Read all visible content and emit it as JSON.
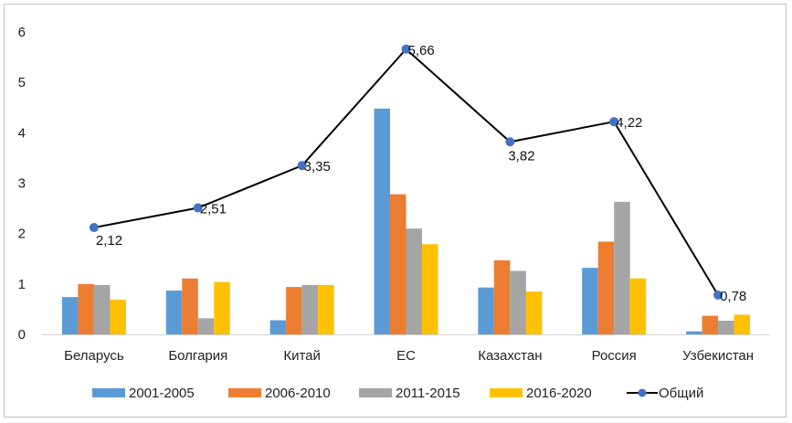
{
  "chart_data": {
    "type": "bar",
    "categories": [
      "Беларусь",
      "Болгария",
      "Китай",
      "ЕС",
      "Казахстан",
      "Россия",
      "Узбекистан"
    ],
    "series": [
      {
        "name": "2001-2005",
        "type": "bar",
        "color": "#5B9BD5",
        "values": [
          0.74,
          0.87,
          0.28,
          4.48,
          0.93,
          1.32,
          0.06
        ]
      },
      {
        "name": "2006-2010",
        "type": "bar",
        "color": "#ED7D31",
        "values": [
          1.0,
          1.11,
          0.94,
          2.78,
          1.47,
          1.84,
          0.37
        ]
      },
      {
        "name": "2011-2015",
        "type": "bar",
        "color": "#A5A5A5",
        "values": [
          0.98,
          0.32,
          0.98,
          2.1,
          1.26,
          2.63,
          0.27
        ]
      },
      {
        "name": "2016-2020",
        "type": "bar",
        "color": "#FFC000",
        "values": [
          0.69,
          1.04,
          0.98,
          1.79,
          0.85,
          1.11,
          0.39
        ]
      },
      {
        "name": "Общий",
        "type": "line",
        "color": "#000000",
        "marker_color": "#4472C4",
        "values": [
          2.12,
          2.51,
          3.35,
          5.66,
          3.82,
          4.22,
          0.78
        ]
      }
    ],
    "data_labels": [
      "2,12",
      "2,51",
      "3,35",
      "5,66",
      "3,82",
      "4,22",
      "0,78"
    ],
    "yticks": [
      "0",
      "1",
      "2",
      "3",
      "4",
      "5",
      "6"
    ],
    "ylim": [
      0,
      6
    ],
    "grid": false,
    "legend_position": "bottom"
  }
}
